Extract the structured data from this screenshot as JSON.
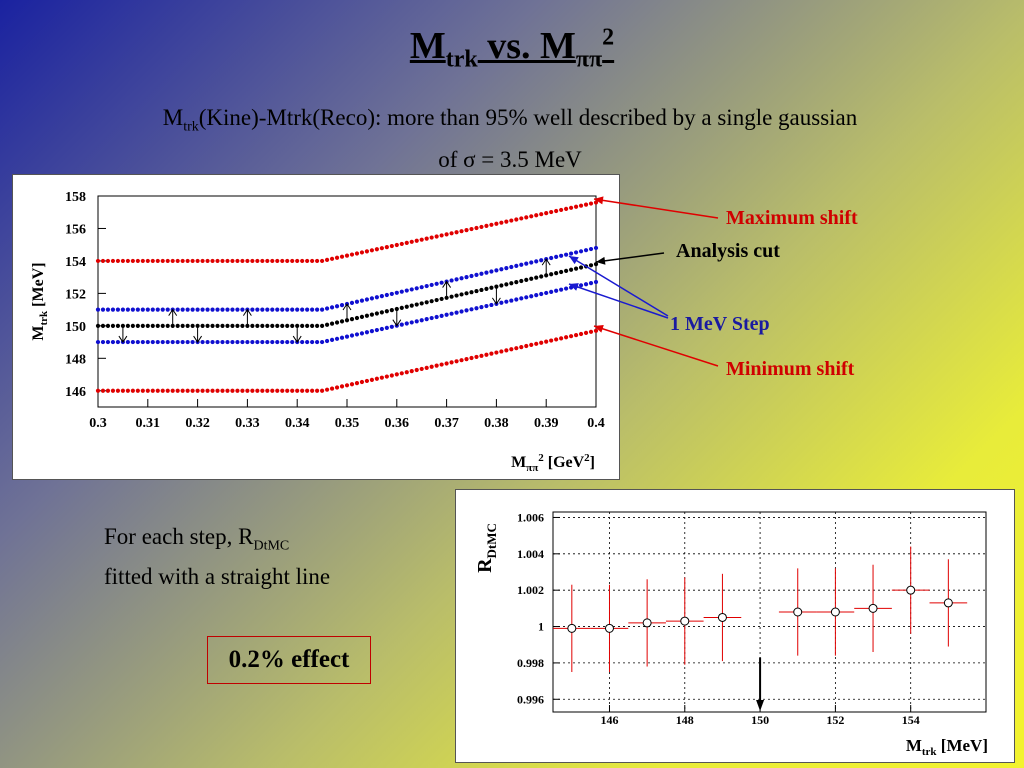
{
  "slide": {
    "title_main": "M",
    "title_sub": "trk",
    "title_mid": " vs. M",
    "title_sub2": "ππ",
    "title_sup": "2",
    "subtitle_prefix": "M",
    "subtitle_sub": "trk",
    "subtitle_rest": "(Kine)-Mtrk(Reco): more than 95% well described by a single gaussian",
    "subtitle_line2": "of σ = 3.5 MeV",
    "note_line1": "For each step, R",
    "note_sub": "DtMC",
    "note_line2": "fitted with a straight line",
    "effect": "0.2%  effect"
  },
  "annotations": {
    "max": "Maximum shift",
    "cut": "Analysis cut",
    "step": "1 MeV Step",
    "min": "Minimum shift"
  },
  "colors": {
    "red": "#e00000",
    "blue": "#1010d0",
    "black": "#000000",
    "annot_red": "#d00000",
    "annot_blue": "#1a1aa0"
  },
  "chart_data": [
    {
      "type": "line",
      "xlabel": "Mππ2 [GeV2]",
      "xlabel_main": "M",
      "xlabel_sub": "ππ",
      "xlabel_sup": "2",
      "xlabel_unit": " [GeV",
      "xlabel_unit_sup": "2",
      "xlabel_close": "]",
      "ylabel_main": "M",
      "ylabel_sub": "trk",
      "ylabel_unit": " [MeV]",
      "xlim": [
        0.3,
        0.4
      ],
      "ylim": [
        145,
        158
      ],
      "xticks": [
        "0.3",
        "0.31",
        "0.32",
        "0.33",
        "0.34",
        "0.35",
        "0.36",
        "0.37",
        "0.38",
        "0.39",
        "0.4"
      ],
      "yticks": [
        "146",
        "148",
        "150",
        "152",
        "154",
        "156",
        "158"
      ],
      "knee_x": 0.345,
      "series": [
        {
          "role": "max",
          "color": "red",
          "y_flat": 154,
          "y_end": 157.6
        },
        {
          "role": "step-up",
          "color": "blue",
          "y_flat": 151,
          "y_end": 154.8
        },
        {
          "role": "cut",
          "color": "black",
          "y_flat": 150,
          "y_end": 153.8
        },
        {
          "role": "step-down",
          "color": "blue",
          "y_flat": 149,
          "y_end": 152.7
        },
        {
          "role": "min",
          "color": "red",
          "y_flat": 146,
          "y_end": 149.7
        }
      ],
      "arrows": [
        {
          "x": 0.305,
          "dir": "down"
        },
        {
          "x": 0.315,
          "dir": "up"
        },
        {
          "x": 0.32,
          "dir": "down"
        },
        {
          "x": 0.33,
          "dir": "up"
        },
        {
          "x": 0.34,
          "dir": "down"
        },
        {
          "x": 0.35,
          "dir": "up"
        },
        {
          "x": 0.36,
          "dir": "down"
        },
        {
          "x": 0.37,
          "dir": "up"
        },
        {
          "x": 0.38,
          "dir": "down"
        },
        {
          "x": 0.39,
          "dir": "up"
        }
      ]
    },
    {
      "type": "scatter",
      "xlabel_main": "M",
      "xlabel_sub": "trk",
      "xlabel_unit": " [MeV]",
      "ylabel_main": "R",
      "ylabel_sub": "DtMC",
      "xlim": [
        144.5,
        156
      ],
      "ylim": [
        0.9953,
        1.0063
      ],
      "xticks": [
        "146",
        "148",
        "150",
        "152",
        "154"
      ],
      "xtick_values": [
        146,
        148,
        150,
        152,
        154
      ],
      "yticks": [
        "0.996",
        "0.998",
        "1",
        "1.002",
        "1.004",
        "1.006"
      ],
      "ytick_values": [
        0.996,
        0.998,
        1,
        1.002,
        1.004,
        1.006
      ],
      "points": [
        {
          "x": 145,
          "y": 0.9999,
          "yerr": 0.0024
        },
        {
          "x": 146,
          "y": 0.9999,
          "yerr": 0.0024
        },
        {
          "x": 147,
          "y": 1.0002,
          "yerr": 0.0024
        },
        {
          "x": 148,
          "y": 1.0003,
          "yerr": 0.0024
        },
        {
          "x": 149,
          "y": 1.0005,
          "yerr": 0.0024
        },
        {
          "x": 151,
          "y": 1.0008,
          "yerr": 0.0024
        },
        {
          "x": 152,
          "y": 1.0008,
          "yerr": 0.0024
        },
        {
          "x": 153,
          "y": 1.001,
          "yerr": 0.0024
        },
        {
          "x": 154,
          "y": 1.002,
          "yerr": 0.0024
        },
        {
          "x": 155,
          "y": 1.0013,
          "yerr": 0.0024
        }
      ],
      "cut_marker_x": 150
    }
  ]
}
